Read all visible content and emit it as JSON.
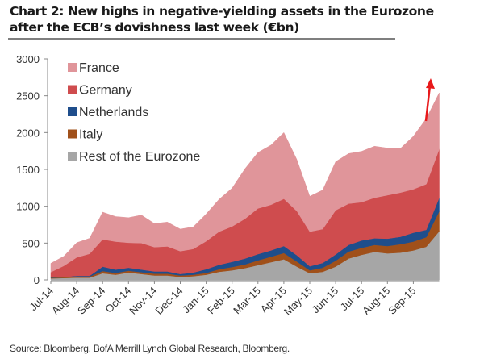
{
  "title": "Chart 2: New highs in negative-yielding assets in the Eurozone after the ECB’s dovishness last week (€bn)",
  "source": "Source: Bloomberg, BofA Merrill Lynch Global Research, Bloomberg.",
  "chart_data": {
    "type": "area",
    "stacked": true,
    "title": "Chart 2: New highs in negative-yielding assets in the Eurozone after the ECB’s dovishness last week (€bn)",
    "xlabel": "",
    "ylabel": "",
    "ylim": [
      0,
      3000
    ],
    "yticks": [
      0,
      500,
      1000,
      1500,
      2000,
      2500,
      3000
    ],
    "xtick_labels": [
      "Jul-14",
      "Aug-14",
      "Sep-14",
      "Oct-14",
      "Nov-14",
      "Dec-14",
      "Jan-15",
      "Feb-15",
      "Mar-15",
      "Apr-15",
      "May-15",
      "Jun-15",
      "Jul-15",
      "Aug-15",
      "Sep-15"
    ],
    "x_months": [
      0,
      0.5,
      1,
      1.5,
      2,
      2.5,
      3,
      3.5,
      4,
      4.5,
      5,
      5.5,
      6,
      6.5,
      7,
      7.5,
      8,
      8.5,
      9,
      9.5,
      10,
      10.5,
      11,
      11.5,
      12,
      12.5,
      13,
      13.5,
      14,
      14.5,
      15
    ],
    "legend_position": "top-left",
    "series": [
      {
        "name": "Rest of the Eurozone",
        "color": "#a6a6a6",
        "values": [
          20,
          25,
          30,
          30,
          90,
          70,
          100,
          80,
          60,
          60,
          40,
          50,
          70,
          110,
          130,
          160,
          200,
          240,
          280,
          180,
          90,
          110,
          180,
          290,
          340,
          380,
          360,
          370,
          400,
          450,
          660
        ]
      },
      {
        "name": "Italy",
        "color": "#a0501a",
        "values": [
          10,
          10,
          15,
          15,
          30,
          25,
          25,
          25,
          25,
          25,
          20,
          20,
          25,
          35,
          45,
          50,
          65,
          75,
          85,
          70,
          40,
          55,
          80,
          95,
          95,
          95,
          100,
          115,
          120,
          130,
          270
        ]
      },
      {
        "name": "Netherlands",
        "color": "#1f4e8c",
        "values": [
          5,
          5,
          10,
          10,
          60,
          45,
          40,
          35,
          30,
          30,
          20,
          30,
          50,
          60,
          70,
          80,
          85,
          85,
          95,
          85,
          55,
          65,
          85,
          90,
          100,
          90,
          100,
          100,
          120,
          100,
          185
        ]
      },
      {
        "name": "Germany",
        "color": "#cf4c4e",
        "values": [
          70,
          150,
          250,
          300,
          370,
          380,
          340,
          360,
          330,
          340,
          310,
          320,
          380,
          450,
          480,
          540,
          620,
          620,
          640,
          600,
          470,
          460,
          600,
          560,
          520,
          550,
          590,
          600,
          590,
          620,
          660
        ]
      },
      {
        "name": "France",
        "color": "#e0959a",
        "values": [
          120,
          130,
          200,
          210,
          370,
          340,
          340,
          380,
          320,
          330,
          300,
          300,
          370,
          440,
          520,
          680,
          760,
          810,
          900,
          700,
          480,
          530,
          660,
          680,
          690,
          700,
          640,
          600,
          720,
          890,
          765
        ]
      }
    ],
    "annotations": [
      {
        "type": "arrow",
        "color": "#e8191b",
        "description": "red upward arrow pointing to new highs at end of series"
      }
    ]
  }
}
